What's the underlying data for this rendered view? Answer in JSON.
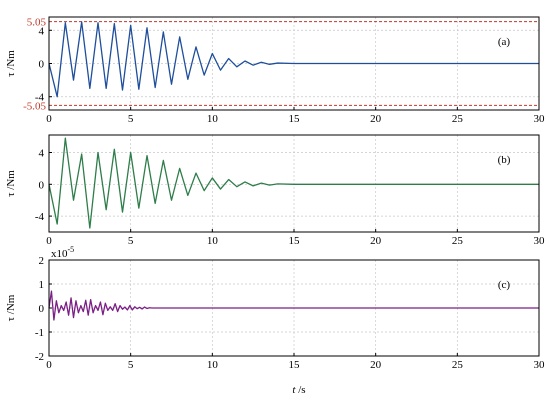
{
  "xlabel_var": "t",
  "xlabel_unit": " /s",
  "chart_data": [
    {
      "type": "line",
      "panel_label": "(a)",
      "ylabel": "τ /Nm",
      "color": "#1f4e9c",
      "xlim": [
        0,
        30
      ],
      "ylim": [
        -5.6,
        5.6
      ],
      "x_ticks": [
        0,
        5,
        10,
        15,
        20,
        25,
        30
      ],
      "y_ticks": [
        -4,
        0,
        4
      ],
      "limit_lines": [
        5.05,
        -5.05
      ],
      "limit_line_color": "#c0392b",
      "limit_labels": [
        "5.05",
        "-5.05"
      ],
      "series": [
        {
          "x": [
            0.0,
            0.5,
            1.0,
            1.5,
            2.0,
            2.5,
            3.0,
            3.5,
            4.0,
            4.5,
            5.0,
            5.5,
            6.0,
            6.5,
            7.0,
            7.5,
            8.0,
            8.5,
            9.0,
            9.5,
            10.0,
            10.5,
            11.0,
            11.5,
            12.0,
            12.5,
            13.0,
            13.5,
            14.0,
            15.0,
            20.0,
            25.0,
            30.0
          ],
          "y": [
            0.0,
            -4.0,
            4.9,
            -2.0,
            5.0,
            -3.0,
            4.9,
            -3.0,
            4.8,
            -3.2,
            4.6,
            -3.1,
            4.3,
            -2.9,
            3.8,
            -2.5,
            3.2,
            -1.9,
            2.0,
            -1.4,
            1.2,
            -0.8,
            0.6,
            -0.4,
            0.3,
            -0.2,
            0.15,
            -0.1,
            0.05,
            0.0,
            0.0,
            0.0,
            0.0
          ]
        }
      ]
    },
    {
      "type": "line",
      "panel_label": "(b)",
      "ylabel": "τ /Nm",
      "color": "#2e7d4a",
      "xlim": [
        0,
        30
      ],
      "ylim": [
        -6,
        6.2
      ],
      "x_ticks": [
        0,
        5,
        10,
        15,
        20,
        25,
        30
      ],
      "y_ticks": [
        -4,
        0,
        4
      ],
      "series": [
        {
          "x": [
            0.0,
            0.5,
            1.0,
            1.5,
            2.0,
            2.5,
            3.0,
            3.5,
            4.0,
            4.5,
            5.0,
            5.5,
            6.0,
            6.5,
            7.0,
            7.5,
            8.0,
            8.5,
            9.0,
            9.5,
            10.0,
            10.5,
            11.0,
            11.5,
            12.0,
            12.5,
            13.0,
            13.5,
            14.0,
            15.0,
            20.0,
            25.0,
            30.0
          ],
          "y": [
            0.0,
            -5.0,
            5.8,
            -2.0,
            3.8,
            -5.5,
            4.0,
            -3.2,
            4.4,
            -3.5,
            4.0,
            -3.0,
            3.6,
            -2.4,
            3.0,
            -2.0,
            2.0,
            -1.4,
            1.4,
            -0.8,
            0.8,
            -0.6,
            0.6,
            -0.3,
            0.3,
            -0.2,
            0.15,
            -0.1,
            0.05,
            0.0,
            0.0,
            0.0,
            0.0
          ]
        }
      ]
    },
    {
      "type": "line",
      "panel_label": "(c)",
      "ylabel": "τ /Nm",
      "color": "#7b1f86",
      "xlim": [
        0,
        30
      ],
      "ylim": [
        -2,
        2
      ],
      "x_ticks": [
        0,
        5,
        10,
        15,
        20,
        25,
        30
      ],
      "y_ticks": [
        -2,
        -1,
        0,
        1,
        2
      ],
      "scale_label_base": "x10",
      "scale_label_exp": "-5",
      "series": [
        {
          "x": [
            0.0,
            0.15,
            0.3,
            0.45,
            0.6,
            0.75,
            0.9,
            1.05,
            1.2,
            1.35,
            1.5,
            1.65,
            1.8,
            1.95,
            2.1,
            2.25,
            2.4,
            2.55,
            2.7,
            2.85,
            3.0,
            3.15,
            3.3,
            3.45,
            3.6,
            3.75,
            3.9,
            4.05,
            4.2,
            4.35,
            4.5,
            4.65,
            4.8,
            4.95,
            5.1,
            5.25,
            5.4,
            5.55,
            5.7,
            5.85,
            6.0,
            6.15,
            6.3,
            7.0,
            10.0,
            20.0,
            30.0
          ],
          "y": [
            0.0,
            0.7,
            -0.5,
            0.3,
            -0.2,
            0.1,
            -0.1,
            0.25,
            -0.3,
            0.42,
            -0.4,
            0.3,
            -0.2,
            0.1,
            -0.15,
            0.32,
            -0.3,
            0.35,
            -0.2,
            0.1,
            -0.1,
            0.25,
            -0.28,
            0.2,
            -0.1,
            0.05,
            -0.1,
            0.18,
            -0.15,
            0.1,
            -0.05,
            0.04,
            -0.08,
            0.1,
            -0.08,
            0.05,
            -0.03,
            0.03,
            -0.04,
            0.04,
            -0.02,
            0.01,
            0.0,
            0.0,
            0.0,
            0.0,
            0.0
          ]
        }
      ]
    }
  ]
}
